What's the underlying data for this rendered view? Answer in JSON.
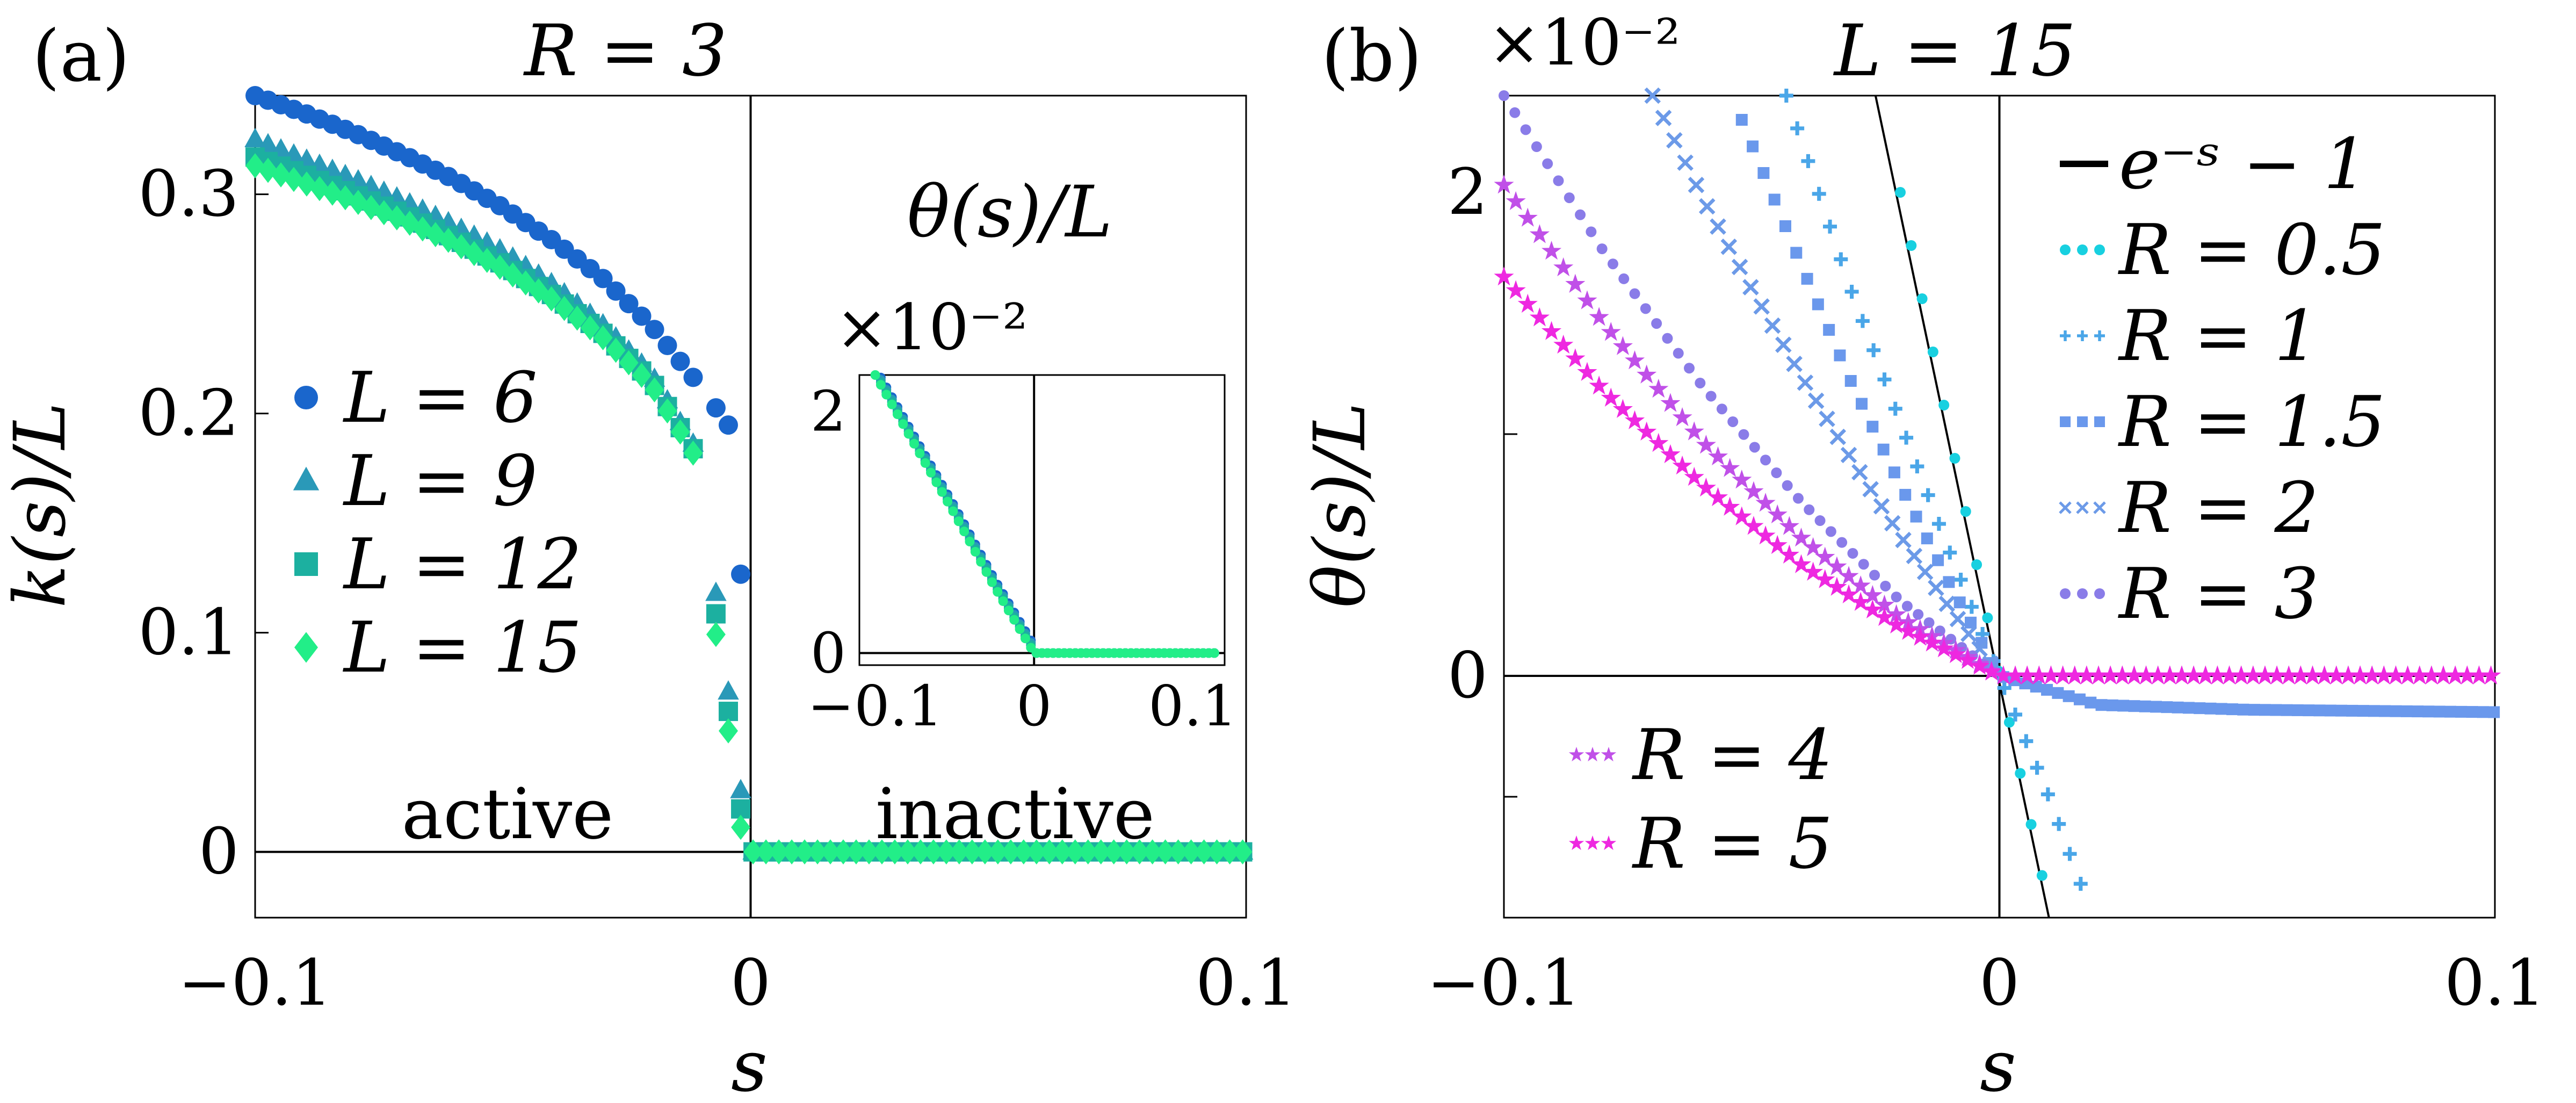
{
  "chart_data": [
    {
      "panel_label": "(a)",
      "type": "scatter",
      "title": "R = 3",
      "xlabel": "s",
      "ylabel": "k(s)/L",
      "xlim": [
        -0.1,
        0.1
      ],
      "ylim": [
        -0.03,
        0.345
      ],
      "x_ticks": [
        "−0.1",
        "0",
        "0.1"
      ],
      "y_ticks": [
        "0",
        "0.1",
        "0.2",
        "0.3"
      ],
      "grid": false,
      "legend_position": "center-left",
      "annotations": [
        "active",
        "inactive"
      ],
      "series": [
        {
          "name": "L = 6",
          "marker": "circle",
          "color": "#1a66cc",
          "x": [
            -0.1,
            -0.09,
            -0.08,
            -0.07,
            -0.06,
            -0.05,
            -0.04,
            -0.03,
            -0.02,
            -0.01,
            -0.003,
            0.0,
            0.02,
            0.05,
            0.1
          ],
          "y": [
            0.345,
            0.337,
            0.328,
            0.318,
            0.307,
            0.294,
            0.279,
            0.262,
            0.24,
            0.212,
            0.19,
            0.0,
            0.0,
            0.0,
            0.0
          ]
        },
        {
          "name": "L = 9",
          "marker": "triangle",
          "color": "#2a99b8",
          "x": [
            -0.1,
            -0.09,
            -0.08,
            -0.07,
            -0.06,
            -0.05,
            -0.04,
            -0.03,
            -0.02,
            -0.01,
            0.0,
            0.02,
            0.05,
            0.1
          ],
          "y": [
            0.325,
            0.316,
            0.307,
            0.297,
            0.286,
            0.274,
            0.259,
            0.241,
            0.218,
            0.18,
            0.0,
            0.0,
            0.0,
            0.0
          ]
        },
        {
          "name": "L = 12",
          "marker": "square",
          "color": "#1cb0a0",
          "x": [
            -0.1,
            -0.09,
            -0.08,
            -0.07,
            -0.06,
            -0.05,
            -0.04,
            -0.03,
            -0.02,
            -0.01,
            0.0,
            0.02,
            0.05,
            0.1
          ],
          "y": [
            0.317,
            0.309,
            0.3,
            0.291,
            0.28,
            0.268,
            0.254,
            0.237,
            0.215,
            0.178,
            0.0,
            0.0,
            0.0,
            0.0
          ]
        },
        {
          "name": "L = 15",
          "marker": "diamond",
          "color": "#22ee88",
          "x": [
            -0.1,
            -0.09,
            -0.08,
            -0.07,
            -0.06,
            -0.05,
            -0.04,
            -0.03,
            -0.02,
            -0.01,
            0.0,
            0.02,
            0.05,
            0.1
          ],
          "y": [
            0.313,
            0.305,
            0.297,
            0.288,
            0.278,
            0.266,
            0.252,
            0.235,
            0.213,
            0.176,
            0.0,
            0.0,
            0.0,
            0.0
          ]
        }
      ],
      "inset": {
        "title": "θ(s)/L",
        "y_multiplier": "×10⁻²",
        "xlim": [
          -0.11,
          0.12
        ],
        "ylim": [
          -0.1,
          2.3
        ],
        "x_ticks": [
          "−0.1",
          "0",
          "0.1"
        ],
        "y_ticks": [
          "0",
          "2"
        ],
        "series_x": [
          -0.1,
          -0.075,
          -0.05,
          -0.025,
          0.0,
          0.05,
          0.115
        ],
        "series_y": [
          2.3,
          1.72,
          1.15,
          0.55,
          0.0,
          0.0,
          0.0
        ]
      }
    },
    {
      "panel_label": "(b)",
      "type": "scatter",
      "title": "L = 15",
      "y_multiplier": "×10⁻²",
      "xlabel": "s",
      "ylabel": "θ(s)/L",
      "xlim": [
        -0.1,
        0.1
      ],
      "ylim": [
        -1.0,
        2.4
      ],
      "x_ticks": [
        "−0.1",
        "0",
        "0.1"
      ],
      "y_ticks": [
        "0",
        "2"
      ],
      "grid": false,
      "legend_position": "top-right",
      "reference_line": {
        "name": "e⁻ˢ − 1",
        "color": "#000000",
        "x": [
          -0.025,
          0.01
        ],
        "y": [
          2.4,
          -1.0
        ]
      },
      "series": [
        {
          "name": "R = 0.5",
          "color": "#18d0e0",
          "marker": "dot",
          "x": [
            -0.02,
            -0.01,
            0.0,
            0.005,
            0.01
          ],
          "y": [
            2.0,
            1.0,
            0.0,
            -0.48,
            -0.96
          ]
        },
        {
          "name": "R = 1",
          "color": "#4aa6e8",
          "marker": "plus",
          "x": [
            -0.043,
            -0.03,
            -0.02,
            -0.01,
            0.0,
            0.01,
            0.018
          ],
          "y": [
            2.4,
            1.6,
            1.05,
            0.51,
            0.0,
            -0.5,
            -0.95
          ]
        },
        {
          "name": "R = 1.5",
          "color": "#6a98ec",
          "marker": "square",
          "x": [
            -0.052,
            -0.04,
            -0.03,
            -0.02,
            -0.01,
            0.0,
            0.02,
            0.05,
            0.1
          ],
          "y": [
            2.3,
            1.7,
            1.22,
            0.79,
            0.38,
            0.0,
            -0.12,
            -0.14,
            -0.15
          ]
        },
        {
          "name": "R = 2",
          "color": "#6c9ae8",
          "marker": "cross",
          "x": [
            -0.07,
            -0.06,
            -0.05,
            -0.04,
            -0.03,
            -0.02,
            -0.01,
            0.0
          ],
          "y": [
            2.4,
            1.98,
            1.6,
            1.24,
            0.9,
            0.58,
            0.28,
            0.0
          ]
        },
        {
          "name": "R = 3",
          "color": "#8a7ce8",
          "marker": "dot",
          "x": [
            -0.1,
            -0.08,
            -0.06,
            -0.04,
            -0.02,
            0.0
          ],
          "y": [
            2.4,
            1.76,
            1.2,
            0.72,
            0.31,
            0.0
          ]
        },
        {
          "name": "R = 4",
          "color": "#c050e8",
          "marker": "star",
          "x": [
            -0.1,
            -0.08,
            -0.06,
            -0.04,
            -0.02,
            0.0,
            0.05,
            0.1
          ],
          "y": [
            2.03,
            1.46,
            0.97,
            0.57,
            0.24,
            0.0,
            0.0,
            0.0
          ]
        },
        {
          "name": "R = 5",
          "color": "#ee28e0",
          "marker": "star",
          "x": [
            -0.1,
            -0.08,
            -0.06,
            -0.04,
            -0.02,
            0.0,
            0.05,
            0.1
          ],
          "y": [
            1.65,
            1.18,
            0.79,
            0.46,
            0.2,
            0.0,
            0.0,
            0.0
          ]
        }
      ]
    }
  ]
}
